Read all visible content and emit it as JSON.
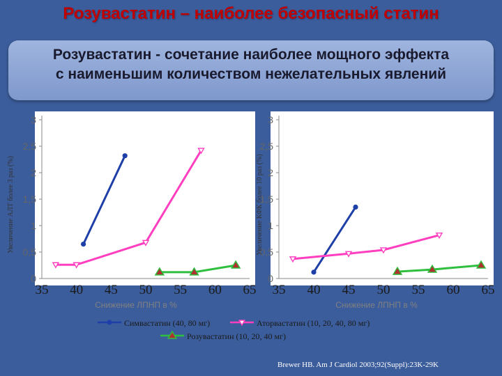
{
  "slide": {
    "title": "Розувастатин – наиболее безопасный статин",
    "subtitle_line1": "Розувастатин - сочетание наиболее мощного эффекта",
    "subtitle_line2": "с наименьшим количеством нежелательных явлений",
    "citation": "Brewer HB. Am J Cardiol 2003;92(Suppl):23K-29K"
  },
  "colors": {
    "simvastatin": "#1f3fa8",
    "atorvastatin": "#ff3fc0",
    "rosuvastatin": "#2fbf3f",
    "rosuvastatin_marker": "#b03030",
    "plot_bg": "#ffffff"
  },
  "legend": {
    "placement": "bottom",
    "items": [
      {
        "label": "Симвастатин (40, 80 мг)",
        "series": "simvastatin",
        "marker": "circle"
      },
      {
        "label": "Аторвастатин (10, 20, 40, 80 мг)",
        "series": "atorvastatin",
        "marker": "triangle-down"
      },
      {
        "label": "Розувастатин (10, 20, 40 мг)",
        "series": "rosuvastatin",
        "marker": "triangle"
      }
    ]
  },
  "chart_data": [
    {
      "type": "line",
      "title": "",
      "xlabel": "Снижение ЛПНП в %",
      "ylabel": "Увеличение АЛТ более 3 раз (%)",
      "xlim": [
        35,
        65
      ],
      "ylim": [
        0,
        3
      ],
      "x_ticks": [
        "35",
        "40",
        "45",
        "50",
        "55",
        "60",
        "65"
      ],
      "y_ticks": [
        "0",
        "0,5",
        "1",
        "1,5",
        "2",
        "2,5",
        "3"
      ],
      "grid": false,
      "series": [
        {
          "name": "Симвастатин (40, 80 мг)",
          "key": "simvastatin",
          "marker": "circle",
          "x": [
            41,
            47
          ],
          "y": [
            0.65,
            2.32
          ]
        },
        {
          "name": "Аторвастатин (10, 20, 40, 80 мг)",
          "key": "atorvastatin",
          "marker": "triangle-down",
          "x": [
            37,
            40,
            50,
            58
          ],
          "y": [
            0.26,
            0.26,
            0.68,
            2.42
          ]
        },
        {
          "name": "Розувастатин (10, 20, 40 мг)",
          "key": "rosuvastatin",
          "marker": "triangle",
          "x": [
            52,
            57,
            63
          ],
          "y": [
            0.12,
            0.12,
            0.25
          ]
        }
      ]
    },
    {
      "type": "line",
      "title": "",
      "xlabel": "Снижение ЛПНП в %",
      "ylabel": "Увеличение КФК более 10 раз (%)",
      "xlim": [
        35,
        65
      ],
      "ylim": [
        0,
        3
      ],
      "x_ticks": [
        "35",
        "40",
        "45",
        "50",
        "55",
        "60",
        "65"
      ],
      "y_ticks": [
        "0",
        "0,5",
        "1",
        "1,5",
        "2",
        "2,5",
        "3"
      ],
      "grid": false,
      "series": [
        {
          "name": "Симвастатин (40, 80 мг)",
          "key": "simvastatin",
          "marker": "circle",
          "x": [
            40,
            46
          ],
          "y": [
            0.12,
            1.35
          ]
        },
        {
          "name": "Аторвастатин (10, 20, 40, 80 мг)",
          "key": "atorvastatin",
          "marker": "triangle-down",
          "x": [
            37,
            45,
            50,
            58
          ],
          "y": [
            0.37,
            0.47,
            0.54,
            0.82
          ]
        },
        {
          "name": "Розувастатин (10, 20, 40 мг)",
          "key": "rosuvastatin",
          "marker": "triangle",
          "x": [
            52,
            57,
            64
          ],
          "y": [
            0.13,
            0.17,
            0.25
          ]
        }
      ]
    }
  ]
}
